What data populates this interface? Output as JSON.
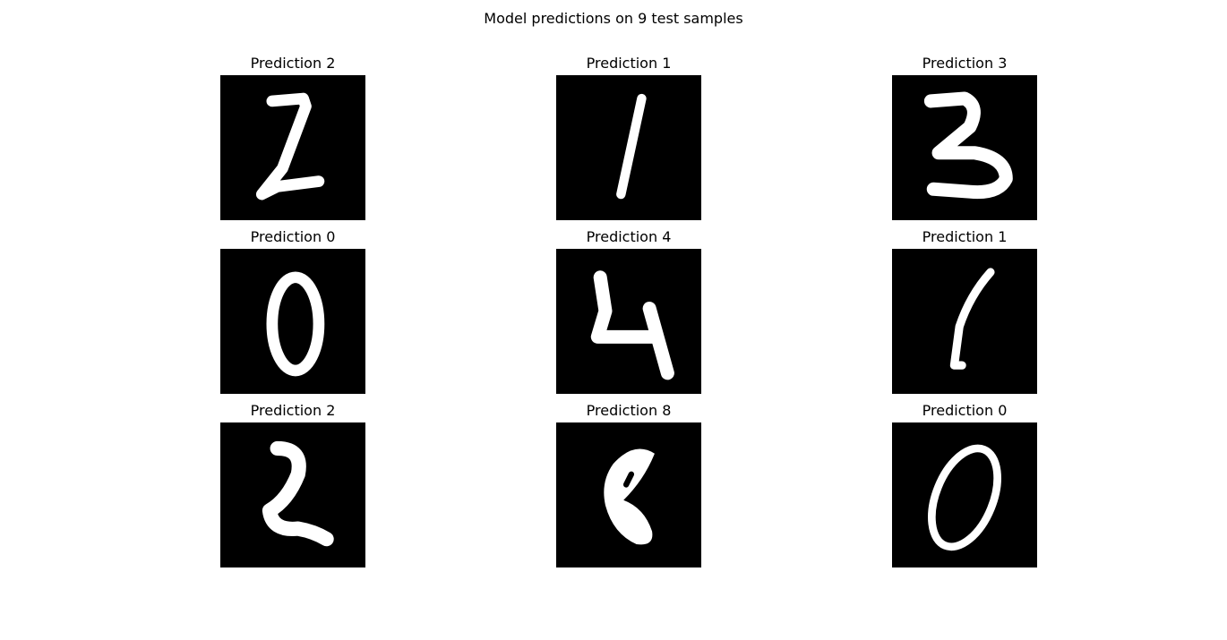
{
  "figure": {
    "title": "Model predictions on 9 test samples"
  },
  "samples": [
    {
      "title": "Prediction 2",
      "digit": "2"
    },
    {
      "title": "Prediction 1",
      "digit": "1"
    },
    {
      "title": "Prediction 3",
      "digit": "3"
    },
    {
      "title": "Prediction 0",
      "digit": "0"
    },
    {
      "title": "Prediction 4",
      "digit": "4"
    },
    {
      "title": "Prediction 1",
      "digit": "1"
    },
    {
      "title": "Prediction 2",
      "digit": "2"
    },
    {
      "title": "Prediction 8",
      "digit": "8"
    },
    {
      "title": "Prediction 0",
      "digit": "0"
    }
  ]
}
